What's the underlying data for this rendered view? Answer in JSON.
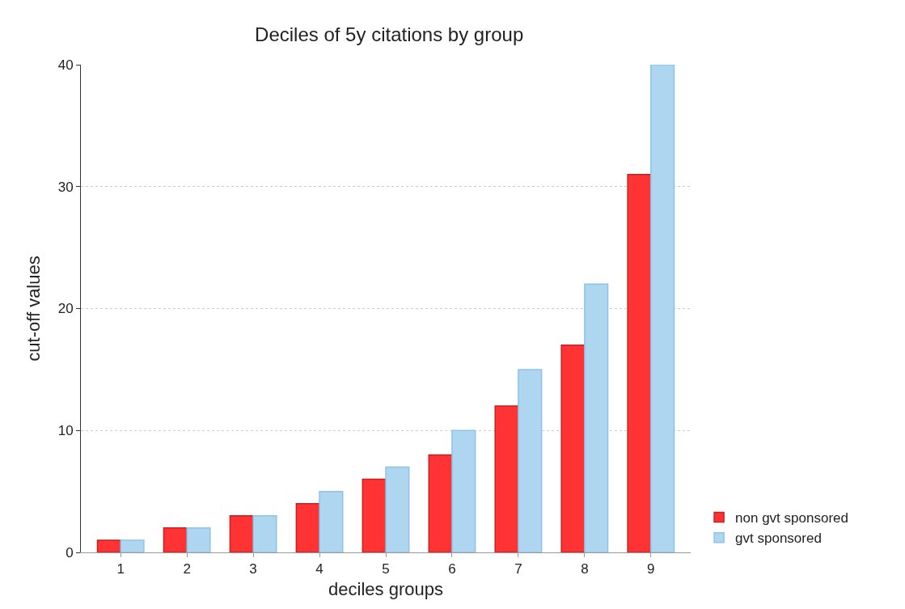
{
  "chart_data": {
    "type": "bar",
    "title": "Deciles of 5y citations by group",
    "xlabel": "deciles groups",
    "ylabel": "cut-off values",
    "categories": [
      "1",
      "2",
      "3",
      "4",
      "5",
      "6",
      "7",
      "8",
      "9"
    ],
    "series": [
      {
        "name": "non gvt sponsored",
        "color": "#ff3333",
        "values": [
          1,
          2,
          3,
          4,
          6,
          8,
          12,
          17,
          31
        ]
      },
      {
        "name": "gvt sponsored",
        "color": "#aed6f0",
        "values": [
          1,
          2,
          3,
          5,
          7,
          10,
          15,
          22,
          40
        ]
      }
    ],
    "ylim": [
      0,
      40
    ],
    "yticks": [
      0,
      10,
      20,
      30,
      40
    ],
    "grid": "y",
    "legend": "bottom right"
  }
}
